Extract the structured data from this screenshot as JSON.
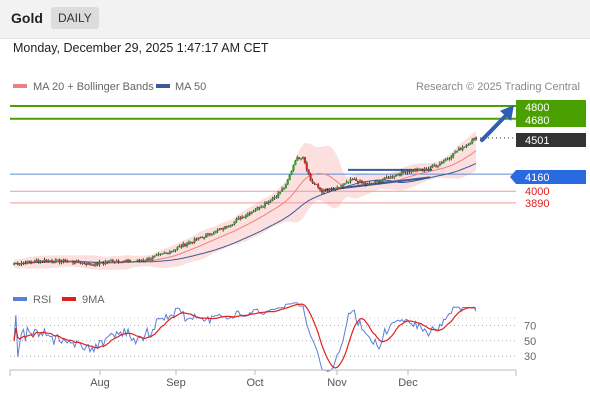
{
  "header": {
    "title": "Gold",
    "timeframe": "DAILY"
  },
  "datetime": "Monday, December 29, 2025 1:47:17 AM CET",
  "chart_data": {
    "type": "candlestick",
    "legend": [
      {
        "name": "MA 20 + Bollinger Bands",
        "color": "#f08080"
      },
      {
        "name": "MA 50",
        "color": "#3a5a9c"
      }
    ],
    "watermark": "Research © 2025 Trading Central",
    "current_price": 4501,
    "levels": [
      {
        "label": "4800",
        "value": 4800,
        "type": "resistance",
        "color": "#4aa000"
      },
      {
        "label": "4680",
        "value": 4680,
        "type": "resistance",
        "color": "#4aa000"
      },
      {
        "label": "4501",
        "value": 4501,
        "type": "current",
        "color": "#333333"
      },
      {
        "label": "4160",
        "value": 4160,
        "type": "pivot",
        "color": "#2a6ae0"
      },
      {
        "label": "4000",
        "value": 4000,
        "type": "support",
        "color": "#e04848"
      },
      {
        "label": "3890",
        "value": 3890,
        "type": "support",
        "color": "#e04848"
      }
    ],
    "x_labels": [
      "Aug",
      "Sep",
      "Oct",
      "Nov",
      "Dec"
    ],
    "y_range": [
      3230,
      4840
    ],
    "rsi": {
      "legend": [
        {
          "name": "RSI",
          "color": "#5b7fd4"
        },
        {
          "name": "9MA",
          "color": "#e02020"
        }
      ],
      "ticks": [
        "70",
        "50",
        "30"
      ],
      "range": [
        15,
        90
      ]
    }
  }
}
